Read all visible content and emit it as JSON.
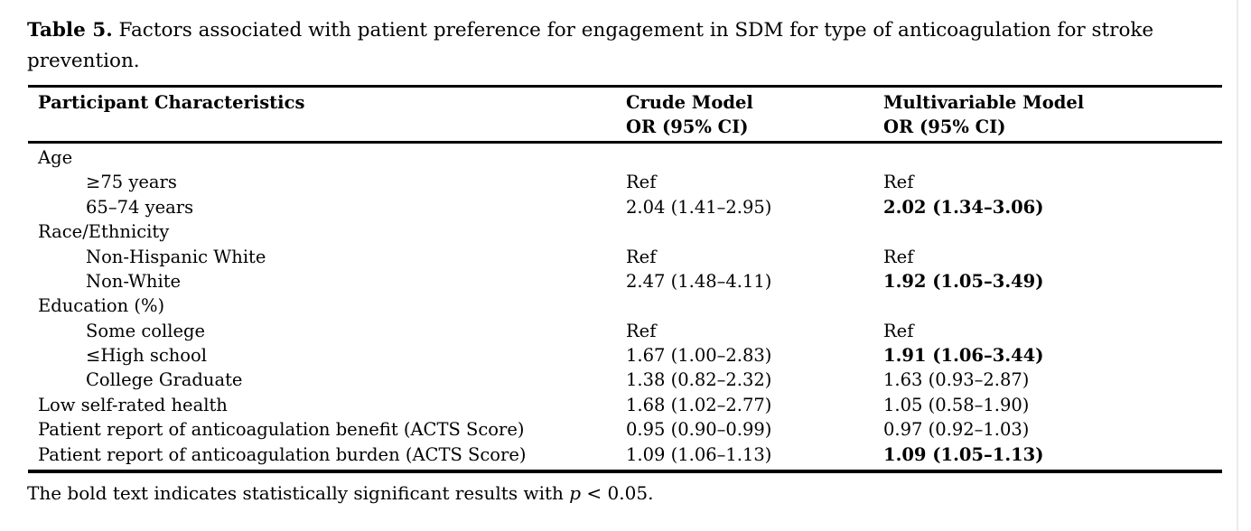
{
  "title": {
    "label": "Table 5.",
    "text": "Factors associated with patient preference for engagement in SDM for type of anticoagulation for stroke prevention."
  },
  "table": {
    "col1_header": "Participant Characteristics",
    "col2_header": "Crude Model",
    "col2_subheader": "OR (95% CI)",
    "col3_header": "Multivariable Model",
    "col3_subheader": "OR (95% CI)",
    "rows": [
      {
        "label": "Age",
        "crude": "",
        "multivariable": "",
        "significant": false
      },
      {
        "label": "≥75 years",
        "crude": "Ref",
        "multivariable": "Ref",
        "significant": false
      },
      {
        "label": "65–74 years",
        "crude": "2.04 (1.41–2.95)",
        "multivariable": "2.02 (1.34–3.06)",
        "significant": true
      },
      {
        "label": "Race/Ethnicity",
        "crude": "",
        "multivariable": "",
        "significant": false
      },
      {
        "label": "Non-Hispanic White",
        "crude": "Ref",
        "multivariable": "Ref",
        "significant": false
      },
      {
        "label": "Non-White",
        "crude": "2.47 (1.48–4.11)",
        "multivariable": "1.92 (1.05–3.49)",
        "significant": true
      },
      {
        "label": "Education (%)",
        "crude": "",
        "multivariable": "",
        "significant": false
      },
      {
        "label": "Some college",
        "crude": "Ref",
        "multivariable": "Ref",
        "significant": false
      },
      {
        "label": "≤High school",
        "crude": "1.67 (1.00–2.83)",
        "multivariable": "1.91 (1.06–3.44)",
        "significant": true
      },
      {
        "label": "College Graduate",
        "crude": "1.38 (0.82–2.32)",
        "multivariable": "1.63 (0.93–2.87)",
        "significant": false
      },
      {
        "label": "Low self-rated health",
        "crude": "1.68 (1.02–2.77)",
        "multivariable": "1.05 (0.58–1.90)",
        "significant": false
      },
      {
        "label": "Patient report of anticoagulation benefit (ACTS Score)",
        "crude": "0.95 (0.90–0.99)",
        "multivariable": "0.97 (0.92–1.03)",
        "significant": false
      },
      {
        "label": "Patient report of anticoagulation burden (ACTS Score)",
        "crude": "1.09 (1.06–1.13)",
        "multivariable": "1.09 (1.05–1.13)",
        "significant": true
      }
    ]
  },
  "footnote": {
    "prefix": "The bold text indicates statistically significant results with ",
    "italic": "p",
    "suffix": " < 0.05."
  },
  "colors": {
    "text": "#000000",
    "background": "#ffffff",
    "rule": "#000000",
    "page_edge_line": "#e7eceb"
  }
}
